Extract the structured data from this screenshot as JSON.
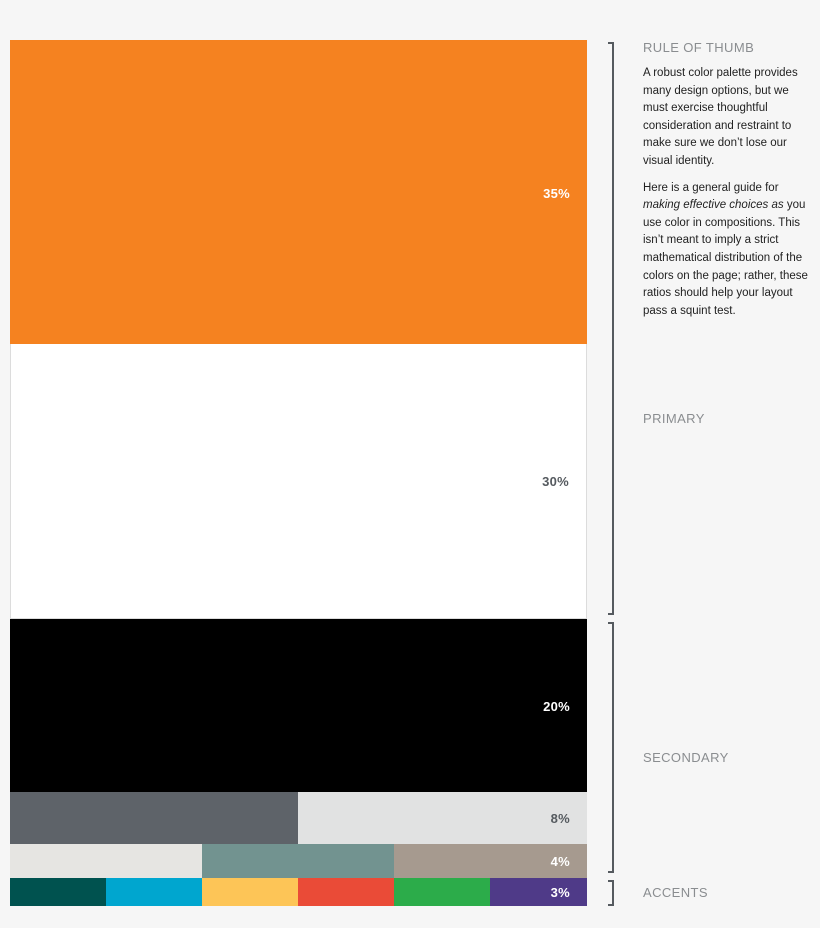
{
  "blocks": {
    "orange": {
      "percent": "35%",
      "color": "#f58220"
    },
    "white": {
      "percent": "30%",
      "color": "#ffffff"
    },
    "black": {
      "percent": "20%",
      "color": "#000000"
    },
    "grays": {
      "percent": "8%",
      "colors": [
        "#5e6369",
        "#e1e2e2"
      ]
    },
    "neutrals": {
      "percent": "4%",
      "colors": [
        "#e6e5e2",
        "#729390",
        "#a69a8f"
      ]
    },
    "accents": {
      "percent": "3%",
      "colors": [
        "#00524f",
        "#00a6cf",
        "#fdc557",
        "#ea4b37",
        "#2cac4a",
        "#4f3a88"
      ]
    }
  },
  "sidebar": {
    "rule_title": "RULE OF THUMB",
    "para1": "A robust color palette provides many design options, but we must exercise thoughtful consideration and restraint to make sure we don’t lose our visual identity.",
    "para2_start": "Here is a general guide for ",
    "para2_em": "making effective choices as",
    "para2_end": " you use color in compositions. This isn’t meant to imply a strict mathematical distribution of the colors on the page; rather, these ratios should help your layout pass a squint test.",
    "primary": "PRIMARY",
    "secondary": "SECONDARY",
    "accents": "ACCENTS"
  }
}
